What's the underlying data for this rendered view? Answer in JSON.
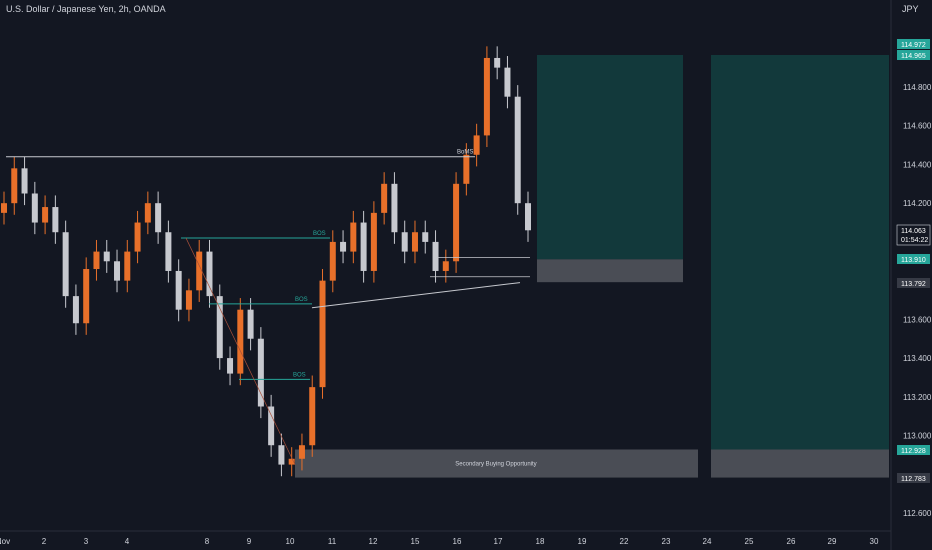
{
  "header": {
    "title": "U.S. Dollar / Japanese Yen, 2h, OANDA",
    "currency_label": "JPY"
  },
  "colors": {
    "background": "#131722",
    "up_candle": "#e8702a",
    "down_candle": "#c7c9cf",
    "zone_teal": "#12393b",
    "zone_gray": "#4a4d55",
    "bos_line": "#26a69a",
    "axis_text": "#d1d4dc",
    "price_tag_green": "#26a69a"
  },
  "chart_data": {
    "type": "candlestick",
    "symbol": "U.S. Dollar / Japanese Yen",
    "interval": "2h",
    "source": "OANDA",
    "x_tick_labels": [
      "Nov",
      "2",
      "3",
      "4",
      "8",
      "9",
      "10",
      "11",
      "12",
      "15",
      "16",
      "17",
      "18",
      "19",
      "22",
      "23",
      "24",
      "25",
      "26",
      "29",
      "30"
    ],
    "y_tick_labels": [
      "114.800",
      "114.600",
      "114.400",
      "114.200",
      "113.600",
      "113.400",
      "113.200",
      "113.000",
      "112.600"
    ],
    "ylim": [
      112.5,
      115.1
    ],
    "price_tags": [
      {
        "text": "114.972",
        "color": "#26a69a"
      },
      {
        "text": "114.965",
        "color": "#26a69a"
      },
      {
        "text": "114.063",
        "sub": "01:54:22",
        "color": "#ffffff"
      },
      {
        "text": "113.910",
        "color": "#26a69a"
      },
      {
        "text": "113.792",
        "color": "#363a45"
      },
      {
        "text": "112.928",
        "color": "#26a69a"
      },
      {
        "text": "112.783",
        "color": "#363a45"
      }
    ],
    "closes": [
      114.2,
      114.38,
      114.25,
      114.1,
      114.18,
      114.05,
      113.72,
      113.58,
      113.86,
      113.95,
      113.9,
      113.8,
      113.95,
      114.1,
      114.2,
      114.05,
      113.85,
      113.65,
      113.75,
      113.95,
      113.72,
      113.4,
      113.32,
      113.65,
      113.5,
      113.15,
      112.95,
      112.85,
      112.88,
      112.95,
      113.25,
      113.8,
      114.0,
      113.95,
      114.1,
      113.85,
      114.15,
      114.3,
      114.05,
      113.95,
      114.05,
      114.0,
      113.85,
      113.9,
      114.3,
      114.45,
      114.55,
      114.95,
      114.9,
      114.75,
      114.2,
      114.06
    ],
    "annotations": [
      {
        "text": "BoMS",
        "price": 114.44
      },
      {
        "text": "BOS",
        "price": 114.02
      },
      {
        "text": "BOS",
        "price": 113.68
      },
      {
        "text": "BOS",
        "price": 113.29
      },
      {
        "text": "Secondary Buying Opportunity",
        "price": 112.86
      }
    ],
    "zones": [
      {
        "type": "target",
        "top": 114.965,
        "bottom": 113.91
      },
      {
        "type": "entry",
        "top": 113.91,
        "bottom": 113.792
      },
      {
        "type": "target",
        "top": 114.965,
        "bottom": 112.928
      },
      {
        "type": "entry",
        "top": 112.928,
        "bottom": 112.783
      }
    ]
  }
}
